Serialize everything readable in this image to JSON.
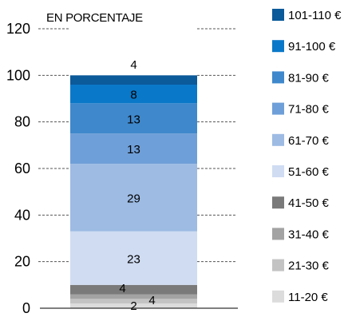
{
  "chart_data": {
    "type": "bar",
    "stacked": true,
    "unit_label": "EN PORCENTAJE",
    "ylim": [
      0,
      120
    ],
    "yticks": [
      0,
      20,
      40,
      60,
      80,
      100,
      120
    ],
    "grid": "dashed horizontal lines beside the bar",
    "legend_position": "right",
    "categories": [
      ""
    ],
    "series": [
      {
        "name": "11-20 €",
        "values": [
          2
        ],
        "label": "2",
        "color": "#dcdcdc"
      },
      {
        "name": "21-30 €",
        "values": [
          2
        ],
        "label": "",
        "color": "#c3c3c3"
      },
      {
        "name": "31-40 €",
        "values": [
          2
        ],
        "label": "4",
        "color": "#a3a3a3"
      },
      {
        "name": "41-50 €",
        "values": [
          4
        ],
        "label": "4",
        "color": "#7a7a7a"
      },
      {
        "name": "51-60 €",
        "values": [
          23
        ],
        "label": "23",
        "color": "#cfdcf2"
      },
      {
        "name": "61-70 €",
        "values": [
          29
        ],
        "label": "29",
        "color": "#9dbbe3"
      },
      {
        "name": "71-80 €",
        "values": [
          13
        ],
        "label": "13",
        "color": "#6f9fd8"
      },
      {
        "name": "81-90 €",
        "values": [
          13
        ],
        "label": "13",
        "color": "#3f88cc"
      },
      {
        "name": "91-100 €",
        "values": [
          8
        ],
        "label": "8",
        "color": "#0a78c8"
      },
      {
        "name": "101-110 €",
        "values": [
          4
        ],
        "label": "4",
        "color": "#0b5a9a"
      }
    ]
  }
}
